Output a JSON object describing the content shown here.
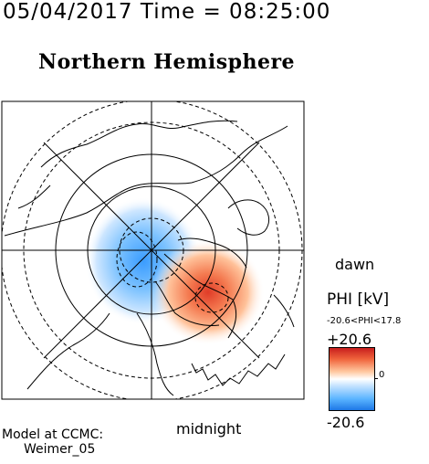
{
  "header": {
    "timestamp": "05/04/2017 Time = 08:25:00",
    "hemisphere_title": "Northern Hemisphere"
  },
  "orientation": {
    "dawn_label": "dawn",
    "midnight_label": "midnight"
  },
  "credit": {
    "line1": "Model at CCMC:",
    "line2": "Weimer_05"
  },
  "legend": {
    "title": "PHI [kV]",
    "range_text": "-20.6<PHI<17.8",
    "max_label": "+20.6",
    "min_label": "-20.6",
    "zero_label": "0",
    "colors": {
      "positive": "#c81e1e",
      "zero": "#ffffff",
      "negative": "#1e78e6"
    }
  },
  "potential_pattern": {
    "min_kv": -20.6,
    "max_kv": 17.8
  }
}
